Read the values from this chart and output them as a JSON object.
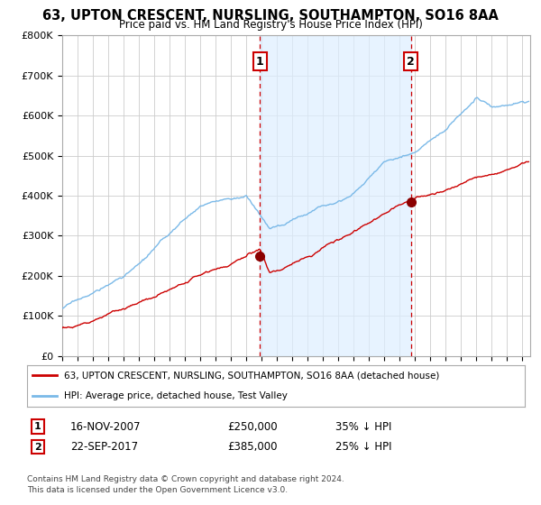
{
  "title": "63, UPTON CRESCENT, NURSLING, SOUTHAMPTON, SO16 8AA",
  "subtitle": "Price paid vs. HM Land Registry's House Price Index (HPI)",
  "legend_line1": "63, UPTON CRESCENT, NURSLING, SOUTHAMPTON, SO16 8AA (detached house)",
  "legend_line2": "HPI: Average price, detached house, Test Valley",
  "transactions": [
    {
      "label": "1",
      "date": "16-NOV-2007",
      "price": "£250,000",
      "pct": "35% ↓ HPI",
      "year": 2007.88
    },
    {
      "label": "2",
      "date": "22-SEP-2017",
      "price": "£385,000",
      "pct": "25% ↓ HPI",
      "year": 2017.72
    }
  ],
  "footnote1": "Contains HM Land Registry data © Crown copyright and database right 2024.",
  "footnote2": "This data is licensed under the Open Government Licence v3.0.",
  "ylim": [
    0,
    800000
  ],
  "yticks": [
    0,
    100000,
    200000,
    300000,
    400000,
    500000,
    600000,
    700000,
    800000
  ],
  "xlim_start": 1995.0,
  "xlim_end": 2025.5,
  "hpi_color": "#7ab9e8",
  "price_color": "#cc0000",
  "marker_color": "#8b0000",
  "vline_color": "#cc0000",
  "shade_color": "#ddeeff",
  "background_color": "#ffffff",
  "grid_color": "#cccccc"
}
